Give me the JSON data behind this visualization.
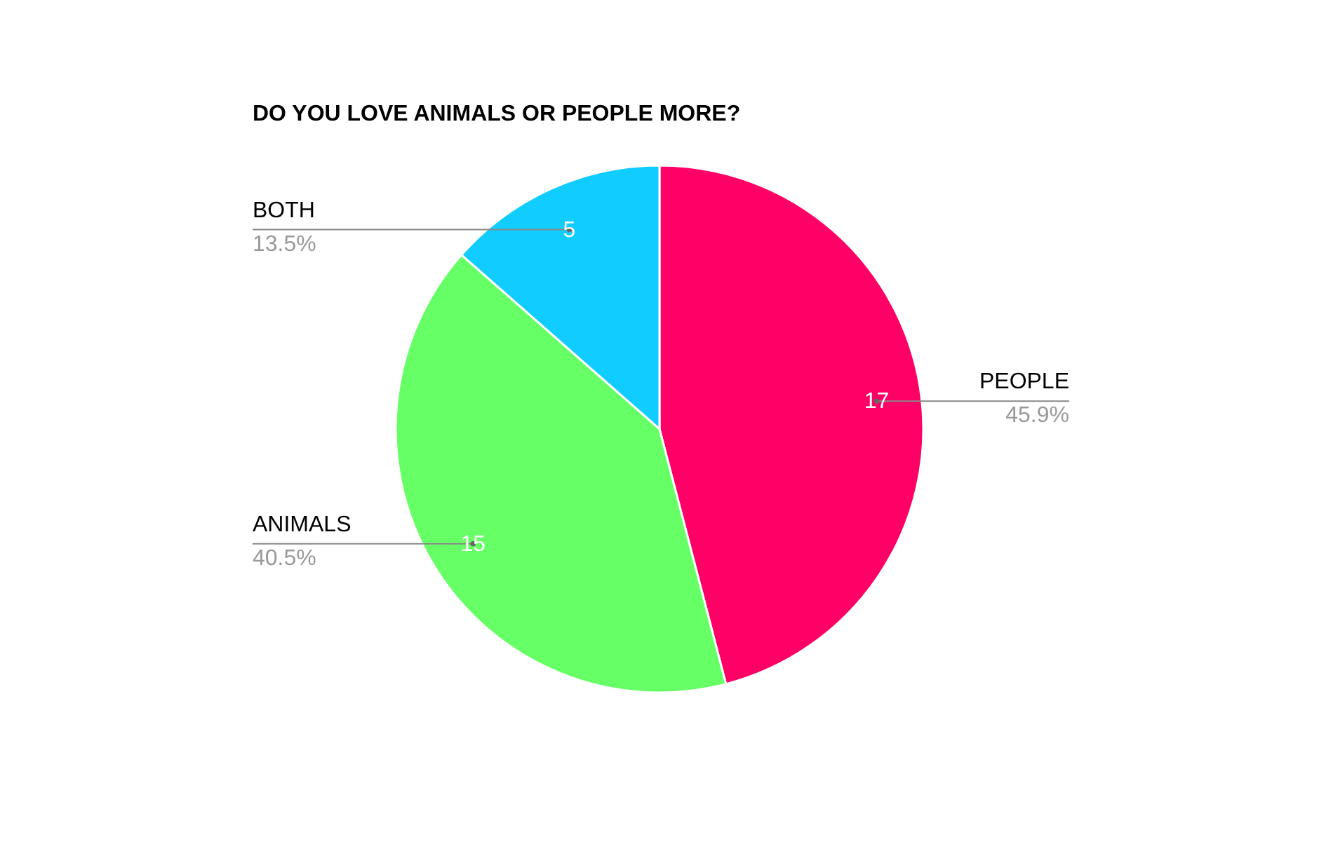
{
  "chart_data": {
    "type": "pie",
    "title": "DO YOU LOVE ANIMALS OR PEOPLE MORE?",
    "categories": [
      "PEOPLE",
      "ANIMALS",
      "BOTH"
    ],
    "values": [
      17,
      15,
      5
    ],
    "colors": [
      "#ff0066",
      "#66ff66",
      "#11ccff"
    ],
    "data_labels": true,
    "annotations": [
      "45.9%",
      "40.5%",
      "13.5%"
    ]
  }
}
